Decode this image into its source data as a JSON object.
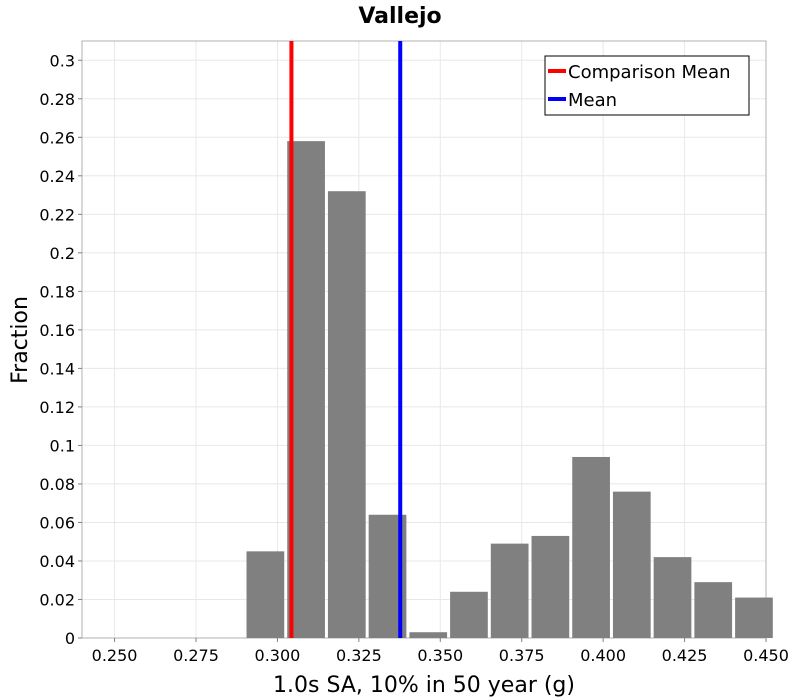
{
  "chart_data": {
    "type": "bar",
    "title": "Vallejo",
    "xlabel": "1.0s SA, 10% in 50 year (g)",
    "ylabel": "Fraction",
    "xlim": [
      0.24,
      0.45
    ],
    "ylim": [
      0,
      0.31
    ],
    "xticks": [
      "0.250",
      "0.275",
      "0.300",
      "0.325",
      "0.350",
      "0.375",
      "0.400",
      "0.425",
      "0.450"
    ],
    "xtick_values": [
      0.25,
      0.275,
      0.3,
      0.325,
      0.35,
      0.375,
      0.4,
      0.425,
      0.45
    ],
    "yticks": [
      "0",
      "0.02",
      "0.04",
      "0.06",
      "0.08",
      "0.1",
      "0.12",
      "0.14",
      "0.16",
      "0.18",
      "0.2",
      "0.22",
      "0.24",
      "0.26",
      "0.28",
      "0.3"
    ],
    "ytick_values": [
      0,
      0.02,
      0.04,
      0.06,
      0.08,
      0.1,
      0.12,
      0.14,
      0.16,
      0.18,
      0.2,
      0.22,
      0.24,
      0.26,
      0.28,
      0.3
    ],
    "bin_width": 0.0125,
    "bin_centers": [
      0.2963,
      0.3088,
      0.3213,
      0.3338,
      0.3463,
      0.3588,
      0.3713,
      0.3838,
      0.3963,
      0.4088,
      0.4213,
      0.4338,
      0.4463
    ],
    "values": [
      0.045,
      0.258,
      0.232,
      0.064,
      0.003,
      0.024,
      0.049,
      0.053,
      0.094,
      0.076,
      0.042,
      0.029,
      0.021
    ],
    "bar_color": "#808080",
    "vlines": [
      {
        "name": "Comparison Mean",
        "x": 0.3043,
        "color": "#ff0000"
      },
      {
        "name": "Mean",
        "x": 0.3377,
        "color": "#0000ff"
      }
    ],
    "legend": [
      "Comparison Mean",
      "Mean"
    ],
    "legend_position": "top-right",
    "grid": true
  }
}
